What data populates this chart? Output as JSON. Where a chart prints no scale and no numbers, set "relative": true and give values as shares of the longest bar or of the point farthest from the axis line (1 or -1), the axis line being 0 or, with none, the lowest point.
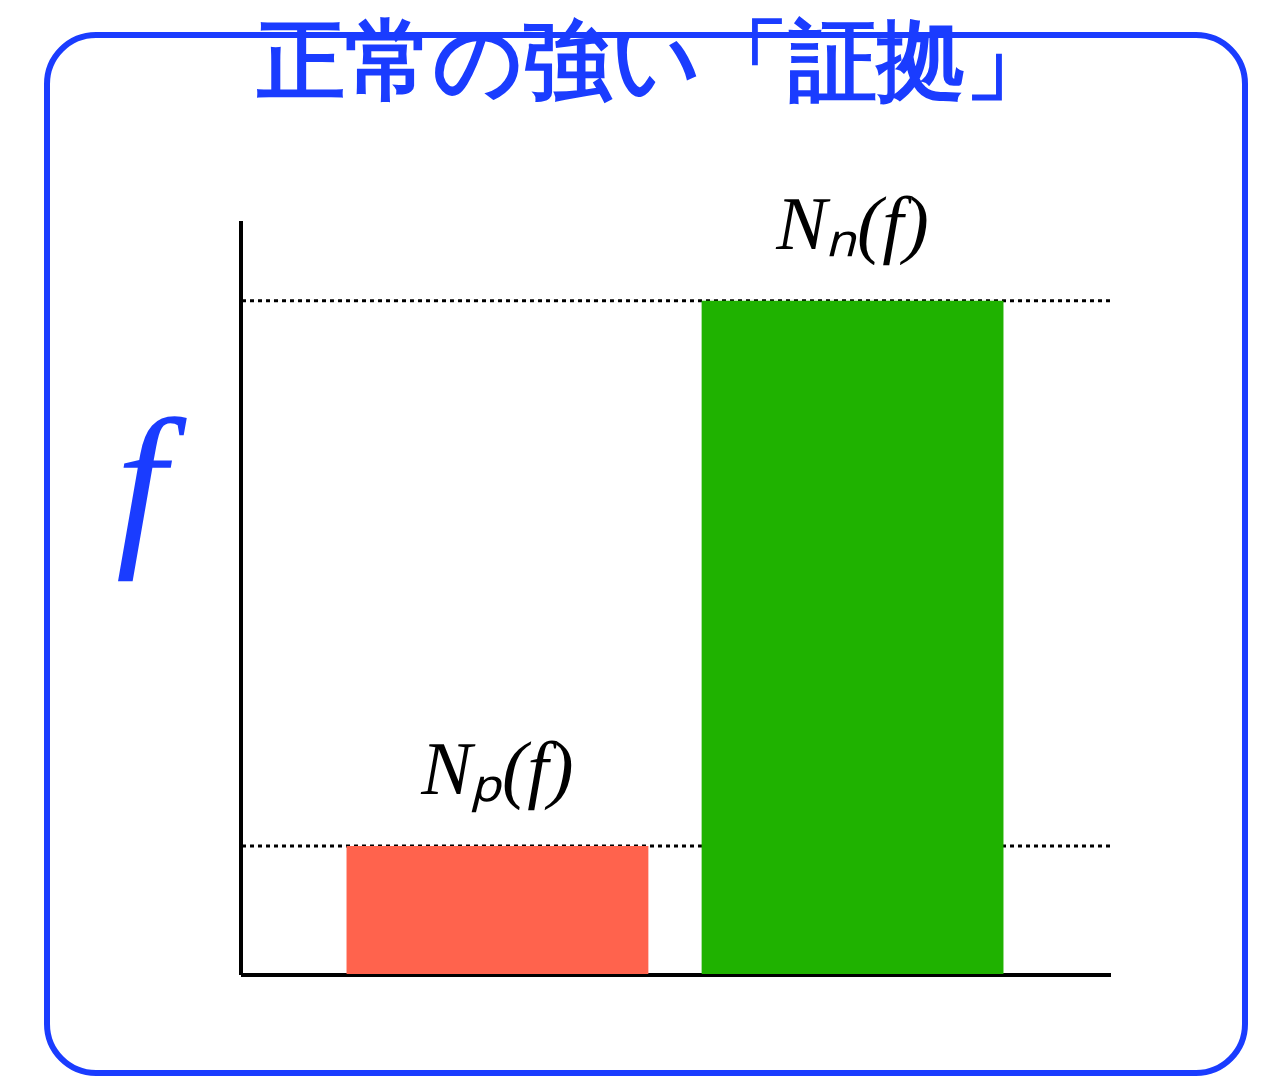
{
  "chart_data": {
    "type": "bar",
    "title": "正常の強い「証拠」",
    "ylabel": "f",
    "relative": true,
    "categories": [
      null,
      null
    ],
    "values": [
      0.19,
      1
    ],
    "colors": [
      "#ff634d",
      "#1fb200"
    ],
    "annotations": [
      {
        "text": "Nₚ(f)",
        "y": 0.19
      },
      {
        "text": "Nₙ(f)",
        "y": 1
      }
    ],
    "ref_lines": [
      {
        "axis": "y",
        "value": 0.19,
        "color": "#000000",
        "line_style": "dotted"
      },
      {
        "axis": "y",
        "value": 1,
        "color": "#000000",
        "line_style": "dotted"
      }
    ]
  }
}
